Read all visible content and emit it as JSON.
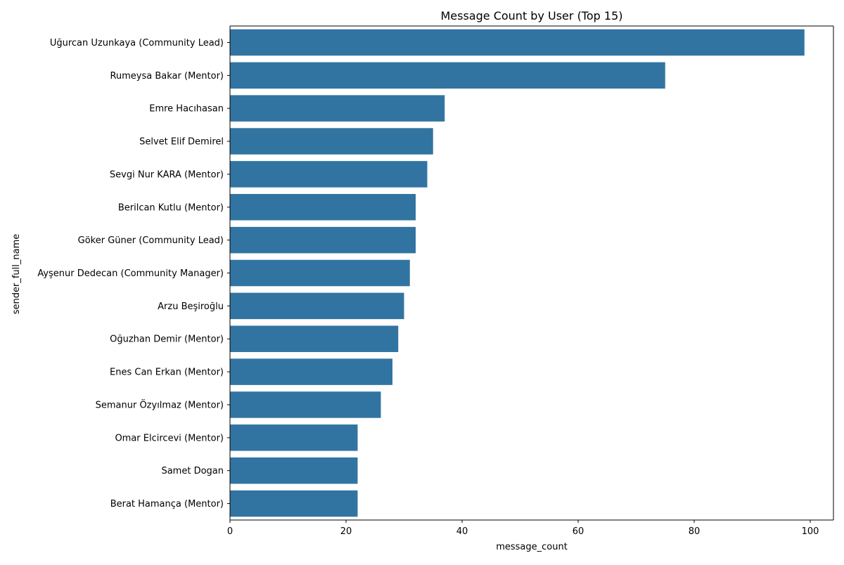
{
  "chart_data": {
    "type": "bar",
    "orientation": "horizontal",
    "title": "Message Count by User (Top 15)",
    "xlabel": "message_count",
    "ylabel": "sender_full_name",
    "xlim": [
      0,
      104
    ],
    "xticks": [
      0,
      20,
      40,
      60,
      80,
      100
    ],
    "grid": false,
    "bar_color": "#3274a1",
    "categories": [
      "Uğurcan Uzunkaya (Community Lead)",
      "Rumeysa Bakar (Mentor)",
      "Emre Hacıhasan",
      "Selvet Elif Demirel",
      "Sevgi Nur KARA (Mentor)",
      "Berilcan Kutlu (Mentor)",
      "Göker Güner (Community Lead)",
      "Ayşenur Dedecan (Community Manager)",
      "Arzu Beşiroğlu",
      "Oğuzhan Demir (Mentor)",
      "Enes Can Erkan (Mentor)",
      "Semanur Özyılmaz (Mentor)",
      "Omar Elcircevi (Mentor)",
      "Samet Dogan",
      "Berat Hamança (Mentor)"
    ],
    "values": [
      99,
      75,
      37,
      35,
      34,
      32,
      32,
      31,
      30,
      29,
      28,
      26,
      22,
      22,
      22
    ]
  }
}
